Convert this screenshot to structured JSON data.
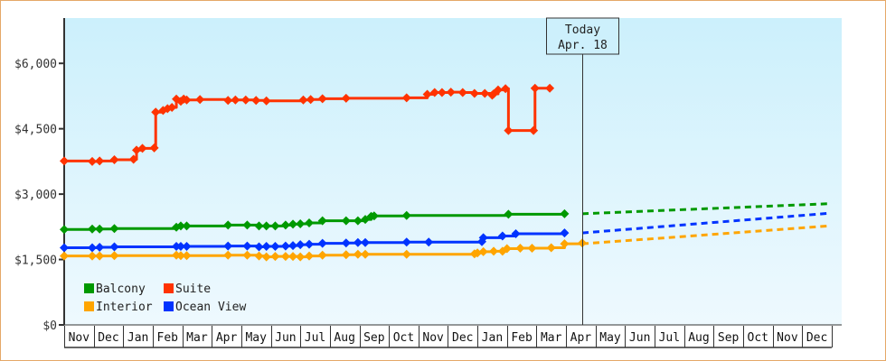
{
  "chart_data": {
    "type": "line",
    "title": "",
    "xlabel": "",
    "ylabel": "",
    "ylim": [
      0,
      7000
    ],
    "yticks": [
      "$0",
      "$1,500",
      "$3,000",
      "$4,500",
      "$6,000"
    ],
    "ytick_values": [
      0,
      1500,
      3000,
      4500,
      6000
    ],
    "x_months": [
      "Nov",
      "Dec",
      "Jan",
      "Feb",
      "Mar",
      "Apr",
      "May",
      "Jun",
      "Jul",
      "Aug",
      "Sep",
      "Oct",
      "Nov",
      "Dec",
      "Jan",
      "Feb",
      "Mar",
      "Apr",
      "May",
      "Jun",
      "Jul",
      "Aug",
      "Sep",
      "Oct",
      "Nov",
      "Dec"
    ],
    "today_marker": {
      "line1": "Today",
      "line2": "Apr. 18",
      "month_index": 17.55
    },
    "grid": false,
    "legend_position": "lower-left",
    "legend": [
      {
        "name": "Balcony",
        "color": "#009900"
      },
      {
        "name": "Suite",
        "color": "#ff3300"
      },
      {
        "name": "Interior",
        "color": "#ffa500"
      },
      {
        "name": "Ocean View",
        "color": "#0033ff"
      }
    ],
    "series": [
      {
        "name": "Suite",
        "color": "#ff3300",
        "points": [
          [
            0.0,
            3760
          ],
          [
            0.95,
            3750
          ],
          [
            1.2,
            3760
          ],
          [
            1.7,
            3790
          ],
          [
            2.35,
            3800
          ],
          [
            2.45,
            4010
          ],
          [
            2.65,
            4050
          ],
          [
            3.05,
            4060
          ],
          [
            3.1,
            4880
          ],
          [
            3.35,
            4920
          ],
          [
            3.5,
            4960
          ],
          [
            3.65,
            4990
          ],
          [
            3.8,
            5180
          ],
          [
            3.95,
            5130
          ],
          [
            4.05,
            5180
          ],
          [
            4.15,
            5160
          ],
          [
            4.6,
            5170
          ],
          [
            5.55,
            5150
          ],
          [
            5.8,
            5160
          ],
          [
            6.15,
            5160
          ],
          [
            6.5,
            5150
          ],
          [
            6.85,
            5140
          ],
          [
            8.1,
            5160
          ],
          [
            8.35,
            5170
          ],
          [
            8.75,
            5190
          ],
          [
            9.55,
            5200
          ],
          [
            11.6,
            5210
          ],
          [
            12.3,
            5290
          ],
          [
            12.55,
            5330
          ],
          [
            12.8,
            5330
          ],
          [
            13.1,
            5340
          ],
          [
            13.5,
            5330
          ],
          [
            13.9,
            5310
          ],
          [
            14.25,
            5310
          ],
          [
            14.5,
            5270
          ],
          [
            14.55,
            5300
          ],
          [
            14.7,
            5390
          ],
          [
            14.95,
            5420
          ],
          [
            15.05,
            4460
          ],
          [
            15.9,
            4460
          ],
          [
            15.95,
            5430
          ],
          [
            16.45,
            5430
          ]
        ]
      },
      {
        "name": "Balcony",
        "color": "#009900",
        "points": [
          [
            0.0,
            2190
          ],
          [
            0.95,
            2200
          ],
          [
            1.2,
            2200
          ],
          [
            1.7,
            2210
          ],
          [
            3.8,
            2240
          ],
          [
            3.95,
            2270
          ],
          [
            4.15,
            2270
          ],
          [
            5.55,
            2290
          ],
          [
            6.2,
            2290
          ],
          [
            6.6,
            2270
          ],
          [
            6.85,
            2270
          ],
          [
            7.15,
            2270
          ],
          [
            7.5,
            2290
          ],
          [
            7.75,
            2310
          ],
          [
            8.0,
            2320
          ],
          [
            8.3,
            2340
          ],
          [
            8.75,
            2390
          ],
          [
            9.55,
            2390
          ],
          [
            9.95,
            2390
          ],
          [
            10.2,
            2420
          ],
          [
            10.4,
            2490
          ],
          [
            10.5,
            2500
          ],
          [
            11.6,
            2510
          ],
          [
            15.05,
            2540
          ],
          [
            16.95,
            2550
          ]
        ]
      },
      {
        "name": "Ocean View",
        "color": "#0033ff",
        "points": [
          [
            0.0,
            1770
          ],
          [
            0.95,
            1770
          ],
          [
            1.2,
            1780
          ],
          [
            1.7,
            1790
          ],
          [
            3.8,
            1800
          ],
          [
            3.95,
            1800
          ],
          [
            4.15,
            1800
          ],
          [
            5.55,
            1810
          ],
          [
            6.2,
            1810
          ],
          [
            6.6,
            1790
          ],
          [
            6.85,
            1800
          ],
          [
            7.15,
            1800
          ],
          [
            7.5,
            1810
          ],
          [
            7.75,
            1820
          ],
          [
            8.0,
            1840
          ],
          [
            8.3,
            1850
          ],
          [
            8.75,
            1870
          ],
          [
            9.55,
            1880
          ],
          [
            9.95,
            1890
          ],
          [
            10.2,
            1890
          ],
          [
            11.6,
            1900
          ],
          [
            12.35,
            1900
          ],
          [
            14.15,
            1910
          ],
          [
            14.2,
            2000
          ],
          [
            14.85,
            2040
          ],
          [
            15.3,
            2090
          ],
          [
            16.95,
            2110
          ]
        ]
      },
      {
        "name": "Interior",
        "color": "#ffa500",
        "points": [
          [
            0.0,
            1580
          ],
          [
            0.95,
            1580
          ],
          [
            1.2,
            1580
          ],
          [
            1.7,
            1590
          ],
          [
            3.8,
            1600
          ],
          [
            3.95,
            1590
          ],
          [
            4.15,
            1590
          ],
          [
            5.55,
            1600
          ],
          [
            6.2,
            1600
          ],
          [
            6.6,
            1580
          ],
          [
            6.85,
            1560
          ],
          [
            7.15,
            1570
          ],
          [
            7.5,
            1570
          ],
          [
            7.75,
            1570
          ],
          [
            8.0,
            1560
          ],
          [
            8.3,
            1580
          ],
          [
            8.75,
            1600
          ],
          [
            9.55,
            1610
          ],
          [
            9.95,
            1620
          ],
          [
            10.2,
            1620
          ],
          [
            11.6,
            1620
          ],
          [
            13.9,
            1630
          ],
          [
            14.0,
            1650
          ],
          [
            14.2,
            1680
          ],
          [
            14.55,
            1690
          ],
          [
            14.85,
            1690
          ],
          [
            15.0,
            1750
          ],
          [
            15.45,
            1760
          ],
          [
            15.85,
            1760
          ],
          [
            16.5,
            1770
          ],
          [
            16.95,
            1860
          ],
          [
            17.55,
            1880
          ]
        ]
      }
    ],
    "projections": [
      {
        "name": "Balcony",
        "color": "#009900",
        "from": [
          17.55,
          2550
        ],
        "to": [
          25.9,
          2780
        ]
      },
      {
        "name": "Ocean View",
        "color": "#0033ff",
        "from": [
          17.55,
          2110
        ],
        "to": [
          25.9,
          2560
        ]
      },
      {
        "name": "Interior",
        "color": "#ffa500",
        "from": [
          17.55,
          1860
        ],
        "to": [
          25.9,
          2270
        ]
      }
    ]
  }
}
